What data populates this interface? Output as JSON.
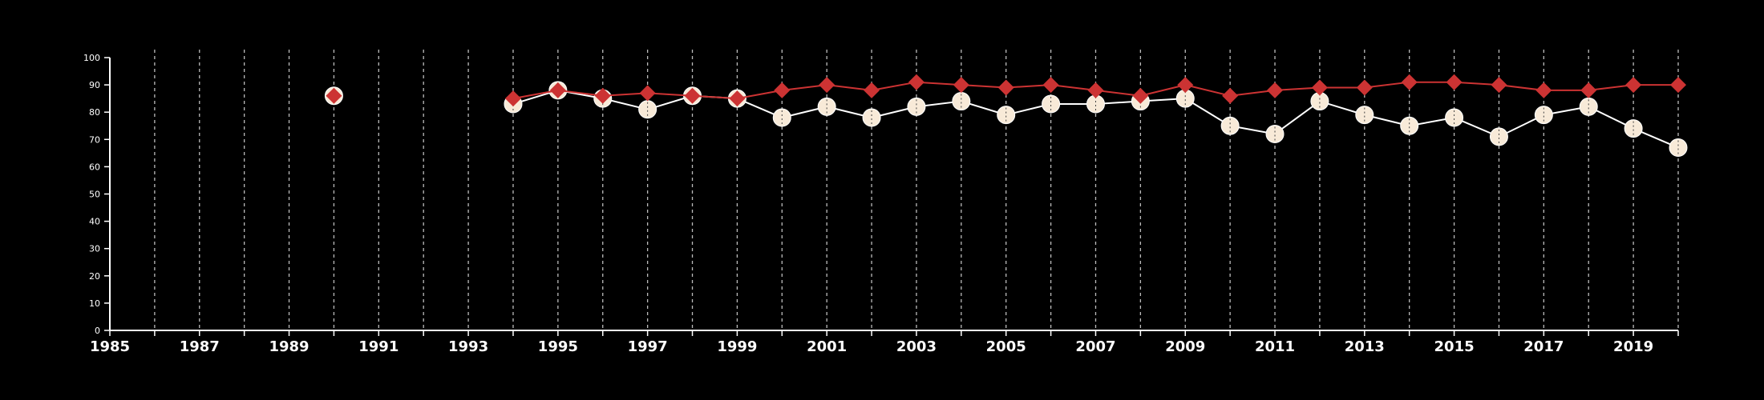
{
  "chart_data": {
    "type": "line",
    "title": "",
    "xlabel": "",
    "ylabel": "",
    "xlim": [
      1985,
      2020
    ],
    "ylim": [
      0,
      100
    ],
    "yticks": [
      0,
      10,
      20,
      30,
      40,
      50,
      60,
      70,
      80,
      90,
      100
    ],
    "xticks": [
      1985,
      1987,
      1989,
      1991,
      1993,
      1995,
      1997,
      1999,
      2001,
      2003,
      2005,
      2007,
      2009,
      2011,
      2013,
      2015,
      2017,
      2019
    ],
    "grid": "vertical dashed at each year",
    "legend": "none",
    "series": [
      {
        "marker": "circle",
        "color": "#f8ead8",
        "line_color": "#ffffff",
        "points": [
          {
            "x": 1990,
            "y": 86
          },
          {
            "x": 1994,
            "y": 83
          },
          {
            "x": 1995,
            "y": 88
          },
          {
            "x": 1996,
            "y": 85
          },
          {
            "x": 1997,
            "y": 81
          },
          {
            "x": 1998,
            "y": 86
          },
          {
            "x": 1999,
            "y": 85
          },
          {
            "x": 2000,
            "y": 78
          },
          {
            "x": 2001,
            "y": 82
          },
          {
            "x": 2002,
            "y": 78
          },
          {
            "x": 2003,
            "y": 82
          },
          {
            "x": 2004,
            "y": 84
          },
          {
            "x": 2005,
            "y": 79
          },
          {
            "x": 2006,
            "y": 83
          },
          {
            "x": 2007,
            "y": 83
          },
          {
            "x": 2008,
            "y": 84
          },
          {
            "x": 2009,
            "y": 85
          },
          {
            "x": 2010,
            "y": 75
          },
          {
            "x": 2011,
            "y": 72
          },
          {
            "x": 2012,
            "y": 84
          },
          {
            "x": 2013,
            "y": 79
          },
          {
            "x": 2014,
            "y": 75
          },
          {
            "x": 2015,
            "y": 78
          },
          {
            "x": 2016,
            "y": 71
          },
          {
            "x": 2017,
            "y": 79
          },
          {
            "x": 2018,
            "y": 82
          },
          {
            "x": 2019,
            "y": 74
          },
          {
            "x": 2020,
            "y": 67
          }
        ]
      },
      {
        "marker": "diamond",
        "color": "#cc3333",
        "line_color": "#cc3333",
        "points": [
          {
            "x": 1990,
            "y": 86
          },
          {
            "x": 1994,
            "y": 85
          },
          {
            "x": 1995,
            "y": 88
          },
          {
            "x": 1996,
            "y": 86
          },
          {
            "x": 1997,
            "y": 87
          },
          {
            "x": 1998,
            "y": 86
          },
          {
            "x": 1999,
            "y": 85
          },
          {
            "x": 2000,
            "y": 88
          },
          {
            "x": 2001,
            "y": 90
          },
          {
            "x": 2002,
            "y": 88
          },
          {
            "x": 2003,
            "y": 91
          },
          {
            "x": 2004,
            "y": 90
          },
          {
            "x": 2005,
            "y": 89
          },
          {
            "x": 2006,
            "y": 90
          },
          {
            "x": 2007,
            "y": 88
          },
          {
            "x": 2008,
            "y": 86
          },
          {
            "x": 2009,
            "y": 90
          },
          {
            "x": 2010,
            "y": 86
          },
          {
            "x": 2011,
            "y": 88
          },
          {
            "x": 2012,
            "y": 89
          },
          {
            "x": 2013,
            "y": 89
          },
          {
            "x": 2014,
            "y": 91
          },
          {
            "x": 2015,
            "y": 91
          },
          {
            "x": 2016,
            "y": 90
          },
          {
            "x": 2017,
            "y": 88
          },
          {
            "x": 2018,
            "y": 88
          },
          {
            "x": 2019,
            "y": 90
          },
          {
            "x": 2020,
            "y": 90
          }
        ]
      }
    ]
  }
}
